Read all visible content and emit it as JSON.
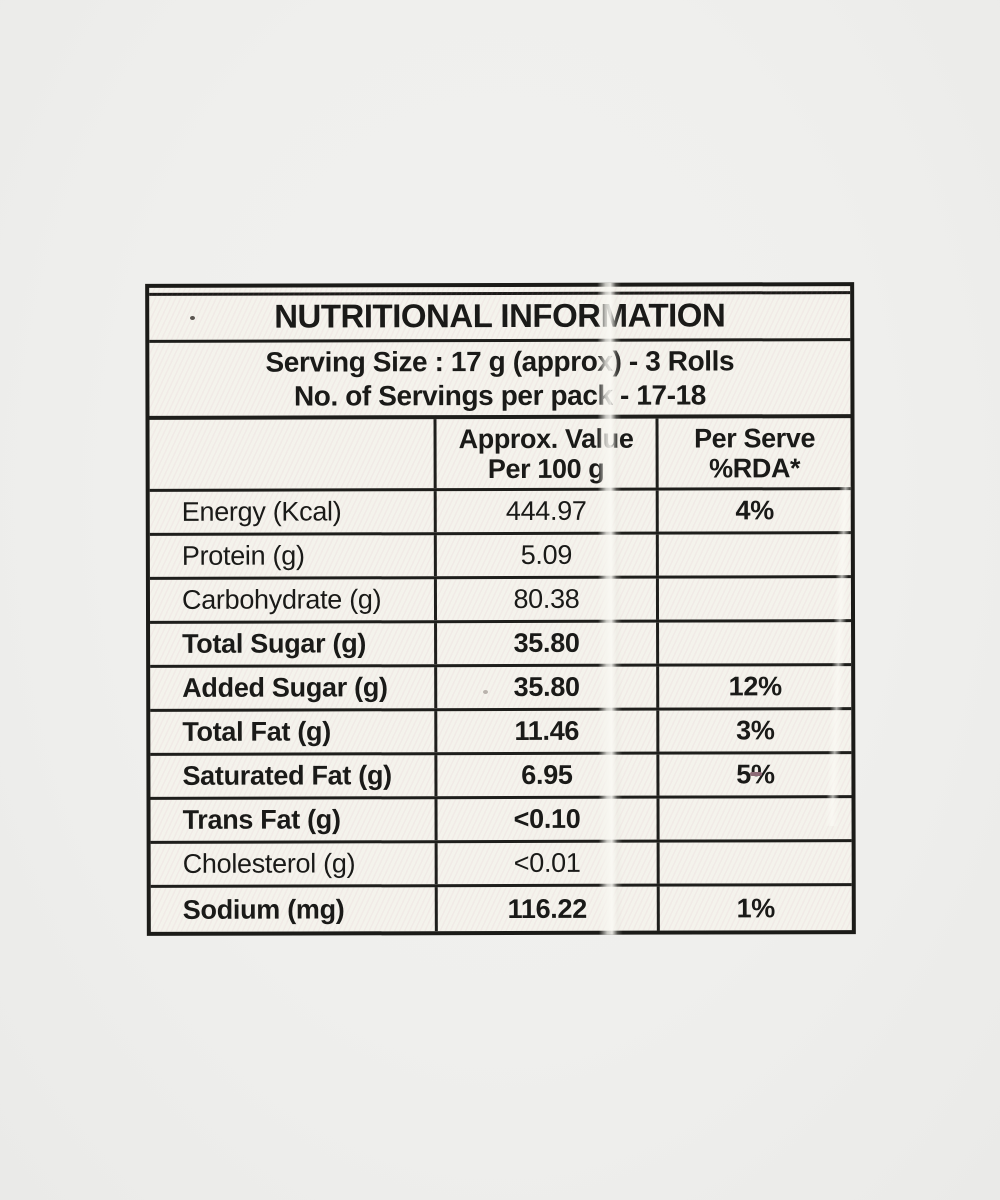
{
  "label": {
    "title": "NUTRITIONAL INFORMATION",
    "serving": {
      "line1": "Serving Size : 17 g (approx) - 3 Rolls",
      "line2": "No. of Servings per pack - 17-18"
    },
    "header": {
      "value_col_line1": "Approx. Value",
      "value_col_line2": "Per 100 g",
      "rda_col_line1": "Per Serve",
      "rda_col_line2": "%RDA*"
    },
    "rows": [
      {
        "nutrient": "Energy (Kcal)",
        "value": "444.97",
        "rda": "4%"
      },
      {
        "nutrient": "Protein (g)",
        "value": "5.09",
        "rda": ""
      },
      {
        "nutrient": "Carbohydrate (g)",
        "value": "80.38",
        "rda": ""
      },
      {
        "nutrient": "Total Sugar (g)",
        "value": "35.80",
        "rda": ""
      },
      {
        "nutrient": "Added Sugar (g)",
        "value": "35.80",
        "rda": "12%"
      },
      {
        "nutrient": "Total Fat (g)",
        "value": "11.46",
        "rda": "3%"
      },
      {
        "nutrient": "Saturated Fat (g)",
        "value": "6.95",
        "rda": "5%"
      },
      {
        "nutrient": "Trans Fat (g)",
        "value": "<0.10",
        "rda": ""
      },
      {
        "nutrient": "Cholesterol (g)",
        "value": "<0.01",
        "rda": ""
      },
      {
        "nutrient": "Sodium (mg)",
        "value": "116.22",
        "rda": "1%"
      }
    ],
    "colors": {
      "ink": "#1a1a18",
      "border": "#1e1e1b",
      "label_background": "#f4f3ec",
      "photo_background": "#efefed"
    }
  }
}
